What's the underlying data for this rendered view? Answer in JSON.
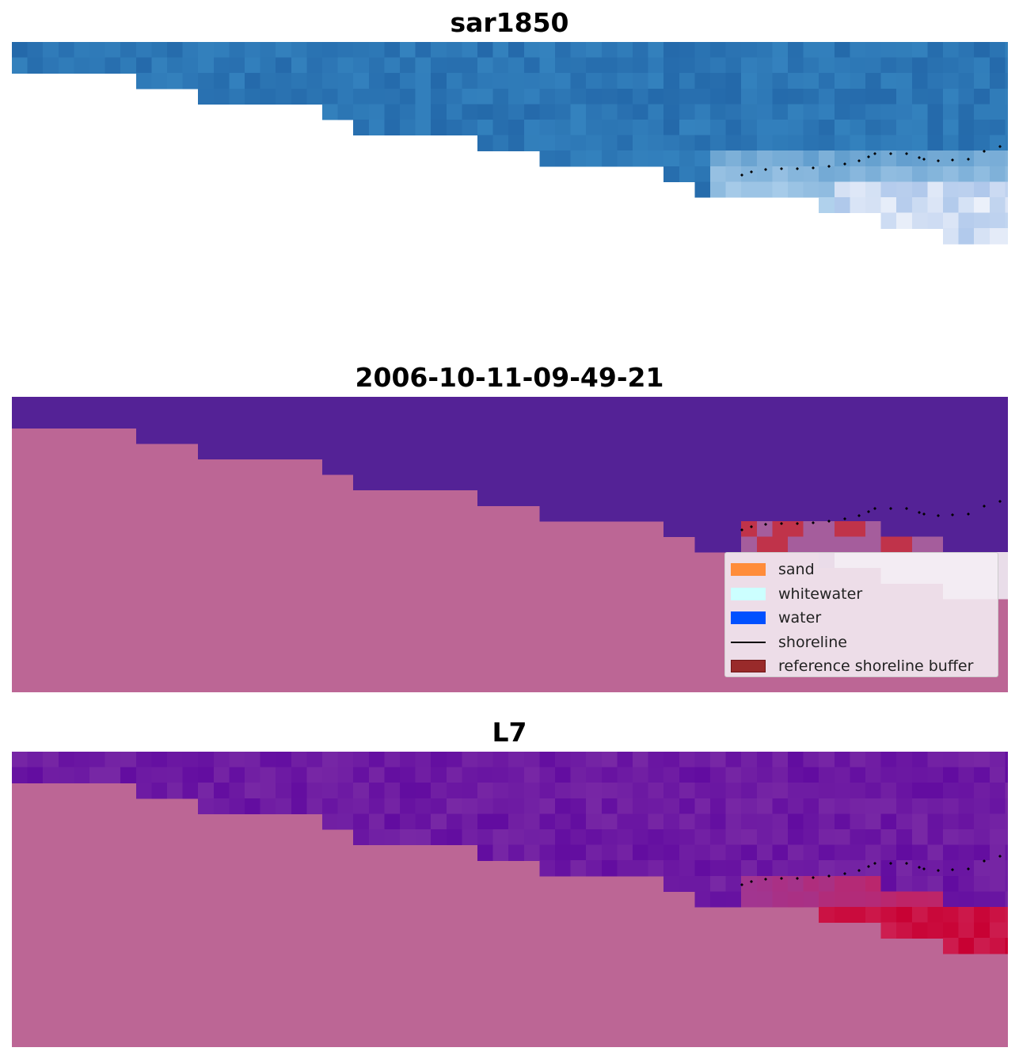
{
  "panels": [
    {
      "title": "sar1850",
      "style": "sar"
    },
    {
      "title": "2006-10-11-09-49-21",
      "style": "classification"
    },
    {
      "title": "L7",
      "style": "ndwi"
    }
  ],
  "legend": {
    "items": [
      {
        "label": "sand",
        "kind": "patch",
        "color": "#ff8c3a"
      },
      {
        "label": "whitewater",
        "kind": "patch",
        "color": "#ccffff"
      },
      {
        "label": "water",
        "kind": "patch",
        "color": "#0050ff"
      },
      {
        "label": "shoreline",
        "kind": "line",
        "color": "#000000"
      },
      {
        "label": "reference shoreline buffer",
        "kind": "patch",
        "color": "#992a2a"
      }
    ]
  },
  "colors": {
    "nodata_land": "#bc6695",
    "water_purple": "#542296",
    "buffer_red": "#c0334a",
    "sar_blue": "#2b74b2"
  }
}
